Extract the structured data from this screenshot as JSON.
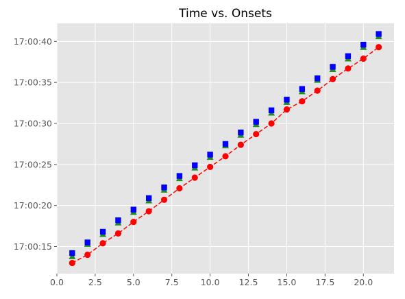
{
  "chart_data": {
    "type": "scatter",
    "title": "Time vs. Onsets",
    "xlabel": "",
    "ylabel": "",
    "xlim": [
      0.0,
      22.0
    ],
    "ylim": [
      "17:00:11.7",
      "17:00:42.2"
    ],
    "x_ticks": [
      "0.0",
      "2.5",
      "5.0",
      "7.5",
      "10.0",
      "12.5",
      "15.0",
      "17.5",
      "20.0"
    ],
    "x_tick_values": [
      0,
      2.5,
      5,
      7.5,
      10,
      12.5,
      15,
      17.5,
      20
    ],
    "y_ticks": [
      "17:00:15",
      "17:00:20",
      "17:00:25",
      "17:00:30",
      "17:00:35",
      "17:00:40"
    ],
    "grid": true,
    "background": "#e5e5e5",
    "x": [
      1,
      2,
      3,
      4,
      5,
      6,
      7,
      8,
      9,
      10,
      11,
      12,
      13,
      14,
      15,
      16,
      17,
      18,
      19,
      20,
      21
    ],
    "series": [
      {
        "marker": "circle",
        "line": "dashed",
        "color": "#ff0000",
        "values": [
          "17:00:13.0",
          "17:00:14.0",
          "17:00:15.4",
          "17:00:16.6",
          "17:00:18.0",
          "17:00:19.3",
          "17:00:20.7",
          "17:00:22.1",
          "17:00:23.4",
          "17:00:24.7",
          "17:00:26.0",
          "17:00:27.4",
          "17:00:28.7",
          "17:00:30.0",
          "17:00:31.7",
          "17:00:32.7",
          "17:00:34.0",
          "17:00:35.4",
          "17:00:36.7",
          "17:00:37.9",
          "17:00:39.3"
        ]
      },
      {
        "marker": "triangle",
        "line": "none",
        "color": "#228b22",
        "values": [
          "17:00:13.8",
          "17:00:15.3",
          "17:00:16.5",
          "17:00:17.9",
          "17:00:19.2",
          "17:00:20.6",
          "17:00:21.9",
          "17:00:23.3",
          "17:00:24.6",
          "17:00:25.9",
          "17:00:27.3",
          "17:00:28.6",
          "17:00:29.9",
          "17:00:31.3",
          "17:00:32.6",
          "17:00:33.9",
          "17:00:35.3",
          "17:00:36.6",
          "17:00:37.9",
          "17:00:39.3",
          "17:00:40.6"
        ]
      },
      {
        "marker": "square",
        "line": "none",
        "color": "#0000ff",
        "values": [
          "17:00:14.2",
          "17:00:15.5",
          "17:00:16.8",
          "17:00:18.2",
          "17:00:19.5",
          "17:00:20.9",
          "17:00:22.2",
          "17:00:23.6",
          "17:00:24.9",
          "17:00:26.2",
          "17:00:27.5",
          "17:00:28.9",
          "17:00:30.2",
          "17:00:31.6",
          "17:00:32.9",
          "17:00:34.2",
          "17:00:35.5",
          "17:00:36.9",
          "17:00:38.2",
          "17:00:39.6",
          "17:00:40.9"
        ]
      }
    ]
  }
}
